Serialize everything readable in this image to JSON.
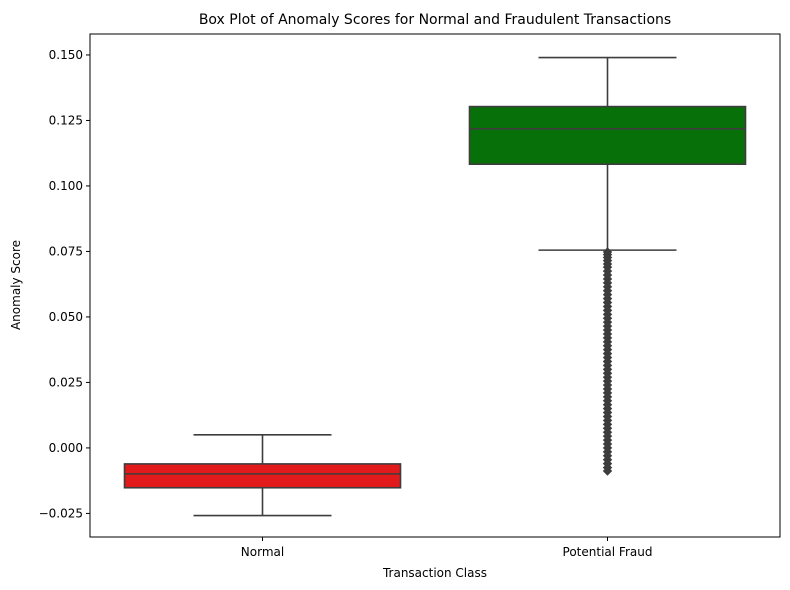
{
  "chart_data": {
    "type": "box",
    "title": "Box Plot of Anomaly Scores for Normal and Fraudulent Transactions",
    "xlabel": "Transaction Class",
    "ylabel": "Anomaly Score",
    "ylim": [
      -0.034,
      0.158
    ],
    "yticks": [
      -0.025,
      0.0,
      0.025,
      0.05,
      0.075,
      0.1,
      0.125,
      0.15
    ],
    "ytick_labels": [
      "−0.025",
      "0.000",
      "0.025",
      "0.050",
      "0.075",
      "0.100",
      "0.125",
      "0.150"
    ],
    "categories": [
      "Normal",
      "Potential Fraud"
    ],
    "grid": false,
    "boxes": [
      {
        "category": "Normal",
        "color": "#e31a1c",
        "whisker_low": -0.0258,
        "q1": -0.0152,
        "median": -0.0099,
        "q3": -0.0061,
        "whisker_high": 0.005,
        "outliers": []
      },
      {
        "category": "Potential Fraud",
        "color": "#087008",
        "whisker_low": 0.0755,
        "q1": 0.1083,
        "median": 0.1218,
        "q3": 0.1303,
        "whisker_high": 0.149,
        "outliers": [
          0.0748,
          0.0738,
          0.0727,
          0.0715,
          0.0702,
          0.069,
          0.0675,
          0.066,
          0.0645,
          0.063,
          0.0615,
          0.06,
          0.0585,
          0.057,
          0.0555,
          0.054,
          0.0525,
          0.051,
          0.0495,
          0.048,
          0.0465,
          0.045,
          0.0435,
          0.042,
          0.0405,
          0.039,
          0.0375,
          0.036,
          0.0345,
          0.033,
          0.0315,
          0.03,
          0.0285,
          0.027,
          0.0255,
          0.024,
          0.0225,
          0.021,
          0.0195,
          0.018,
          0.0165,
          0.015,
          0.0135,
          0.012,
          0.0105,
          0.009,
          0.0075,
          0.006,
          0.0045,
          0.003,
          0.0015,
          0.0,
          -0.0015,
          -0.003,
          -0.0045,
          -0.006,
          -0.0075,
          -0.0088
        ]
      }
    ]
  }
}
